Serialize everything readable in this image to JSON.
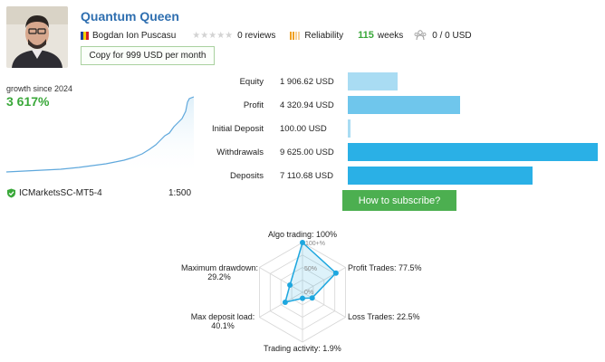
{
  "profile": {
    "title": "Quantum Queen",
    "author": "Bogdan Ion Puscasu",
    "reviews": "0 reviews",
    "reliability": "Reliability",
    "weeks_value": "115",
    "weeks_label": "weeks",
    "subscribers": "0 / 0 USD",
    "copy_button": "Copy for 999 USD per month"
  },
  "growth": {
    "label": "growth since 2024",
    "value": "3 617%",
    "broker": "ICMarketsSC-MT5-4",
    "leverage": "1:500",
    "line_color": "#5fa8dc"
  },
  "stats": {
    "bar_color_light": "#a9dcf3",
    "bar_color_mid": "#6fc6ec",
    "bar_color_dark": "#2ab0e6",
    "rows": [
      {
        "label": "Equity",
        "value": "1 906.62 USD",
        "amount": 1906.62
      },
      {
        "label": "Profit",
        "value": "4 320.94 USD",
        "amount": 4320.94
      },
      {
        "label": "Initial Deposit",
        "value": "100.00 USD",
        "amount": 100.0
      },
      {
        "label": "Withdrawals",
        "value": "9 625.00 USD",
        "amount": 9625.0
      },
      {
        "label": "Deposits",
        "value": "7 110.68 USD",
        "amount": 7110.68
      }
    ],
    "subscribe_button": "How to subscribe?"
  },
  "radar": {
    "algo": "Algo trading: 100%",
    "profit": "Profit Trades: 77.5%",
    "loss": "Loss Trades: 22.5%",
    "activity": "Trading activity: 1.9%",
    "deposit_load_title": "Max deposit load:",
    "deposit_load_value": "40.1%",
    "drawdown_title": "Maximum drawdown:",
    "drawdown_value": "29.2%",
    "scale_100": "100+%",
    "scale_50": "50%",
    "scale_0": "0%",
    "values": {
      "algo": 100,
      "profit": 77.5,
      "loss": 22.5,
      "activity": 1.9,
      "deposit_load": 40.1,
      "drawdown": 29.2
    },
    "accent": "#1ea7df"
  }
}
